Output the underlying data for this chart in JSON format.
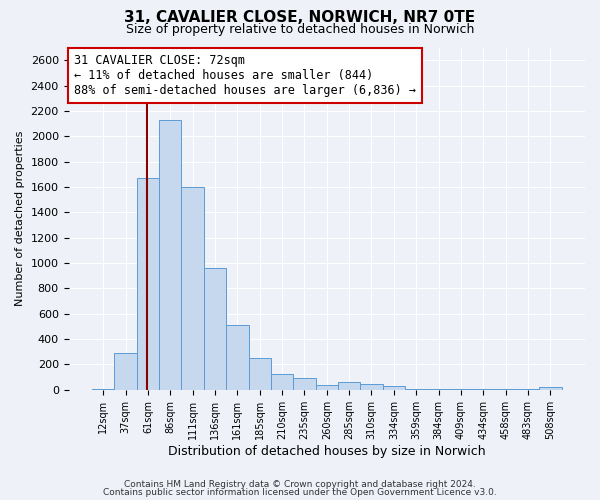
{
  "title": "31, CAVALIER CLOSE, NORWICH, NR7 0TE",
  "subtitle": "Size of property relative to detached houses in Norwich",
  "xlabel": "Distribution of detached houses by size in Norwich",
  "ylabel": "Number of detached properties",
  "bar_labels": [
    "12sqm",
    "37sqm",
    "61sqm",
    "86sqm",
    "111sqm",
    "136sqm",
    "161sqm",
    "185sqm",
    "210sqm",
    "235sqm",
    "260sqm",
    "285sqm",
    "310sqm",
    "334sqm",
    "359sqm",
    "384sqm",
    "409sqm",
    "434sqm",
    "458sqm",
    "483sqm",
    "508sqm"
  ],
  "bar_heights": [
    10,
    290,
    1670,
    2130,
    1600,
    960,
    510,
    255,
    125,
    95,
    35,
    60,
    50,
    30,
    10,
    10,
    5,
    5,
    5,
    5,
    20
  ],
  "bar_color": "#c5d8ed",
  "bar_edge_color": "#5b9bd5",
  "annotation_box_text": "31 CAVALIER CLOSE: 72sqm\n← 11% of detached houses are smaller (844)\n88% of semi-detached houses are larger (6,836) →",
  "annotation_box_color": "white",
  "annotation_box_edge_color": "#cc0000",
  "red_line_color": "#8b0000",
  "ylim": [
    0,
    2700
  ],
  "yticks": [
    0,
    200,
    400,
    600,
    800,
    1000,
    1200,
    1400,
    1600,
    1800,
    2000,
    2200,
    2400,
    2600
  ],
  "footer1": "Contains HM Land Registry data © Crown copyright and database right 2024.",
  "footer2": "Contains public sector information licensed under the Open Government Licence v3.0.",
  "background_color": "#eef2f8",
  "grid_color": "#ffffff",
  "title_fontsize": 11,
  "subtitle_fontsize": 9,
  "annotation_fontsize": 8.5,
  "xlabel_fontsize": 9,
  "ylabel_fontsize": 8
}
